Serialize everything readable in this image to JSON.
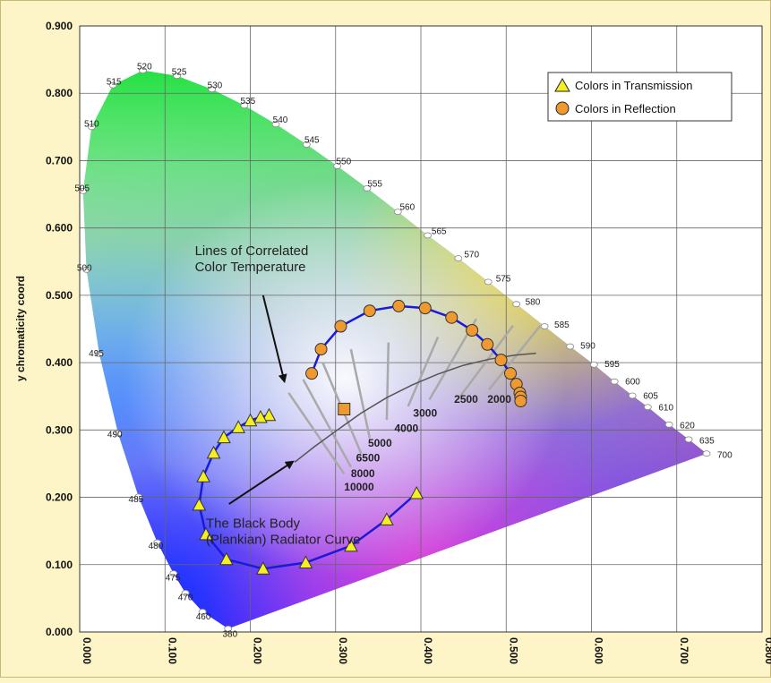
{
  "chart_data": {
    "type": "scatter",
    "title": "",
    "xlabel": "",
    "ylabel": "y chromaticity coord",
    "xlim": [
      0,
      0.8
    ],
    "ylim": [
      0,
      0.9
    ],
    "x_ticks": [
      "0.000",
      "0.100",
      "0.200",
      "0.300",
      "0.400",
      "0.500",
      "0.600",
      "0.700",
      "0.800"
    ],
    "y_ticks": [
      "0.000",
      "0.100",
      "0.200",
      "0.300",
      "0.400",
      "0.500",
      "0.600",
      "0.700",
      "0.800",
      "0.900"
    ],
    "grid": true,
    "legend_position": "top-right",
    "spectral_locus": [
      {
        "label": "380",
        "x": 0.174,
        "y": 0.005
      },
      {
        "label": "460",
        "x": 0.144,
        "y": 0.03
      },
      {
        "label": "470",
        "x": 0.124,
        "y": 0.058
      },
      {
        "label": "475",
        "x": 0.11,
        "y": 0.087
      },
      {
        "label": "480",
        "x": 0.091,
        "y": 0.133
      },
      {
        "label": "485",
        "x": 0.069,
        "y": 0.201
      },
      {
        "label": "490",
        "x": 0.045,
        "y": 0.295
      },
      {
        "label": "495",
        "x": 0.023,
        "y": 0.413
      },
      {
        "label": "500",
        "x": 0.008,
        "y": 0.538
      },
      {
        "label": "505",
        "x": 0.004,
        "y": 0.655
      },
      {
        "label": "510",
        "x": 0.014,
        "y": 0.75
      },
      {
        "label": "515",
        "x": 0.039,
        "y": 0.812
      },
      {
        "label": "520",
        "x": 0.074,
        "y": 0.834
      },
      {
        "label": "525",
        "x": 0.114,
        "y": 0.826
      },
      {
        "label": "530",
        "x": 0.155,
        "y": 0.806
      },
      {
        "label": "535",
        "x": 0.193,
        "y": 0.782
      },
      {
        "label": "540",
        "x": 0.23,
        "y": 0.754
      },
      {
        "label": "545",
        "x": 0.266,
        "y": 0.724
      },
      {
        "label": "550",
        "x": 0.302,
        "y": 0.692
      },
      {
        "label": "555",
        "x": 0.337,
        "y": 0.659
      },
      {
        "label": "560",
        "x": 0.373,
        "y": 0.624
      },
      {
        "label": "565",
        "x": 0.408,
        "y": 0.589
      },
      {
        "label": "570",
        "x": 0.444,
        "y": 0.555
      },
      {
        "label": "575",
        "x": 0.479,
        "y": 0.52
      },
      {
        "label": "580",
        "x": 0.512,
        "y": 0.487
      },
      {
        "label": "585",
        "x": 0.545,
        "y": 0.454
      },
      {
        "label": "590",
        "x": 0.575,
        "y": 0.424
      },
      {
        "label": "595",
        "x": 0.603,
        "y": 0.397
      },
      {
        "label": "600",
        "x": 0.627,
        "y": 0.372
      },
      {
        "label": "605",
        "x": 0.648,
        "y": 0.351
      },
      {
        "label": "610",
        "x": 0.666,
        "y": 0.334
      },
      {
        "label": "620",
        "x": 0.691,
        "y": 0.308
      },
      {
        "label": "635",
        "x": 0.714,
        "y": 0.286
      },
      {
        "label": "700",
        "x": 0.735,
        "y": 0.265
      }
    ],
    "series": [
      {
        "name": "Colors in Transmission",
        "marker": "triangle",
        "color": "#f4ee22",
        "points": [
          {
            "x": 0.222,
            "y": 0.322
          },
          {
            "x": 0.212,
            "y": 0.319
          },
          {
            "x": 0.2,
            "y": 0.314
          },
          {
            "x": 0.186,
            "y": 0.304
          },
          {
            "x": 0.169,
            "y": 0.289
          },
          {
            "x": 0.157,
            "y": 0.266
          },
          {
            "x": 0.145,
            "y": 0.231
          },
          {
            "x": 0.14,
            "y": 0.189
          },
          {
            "x": 0.148,
            "y": 0.145
          },
          {
            "x": 0.172,
            "y": 0.108
          },
          {
            "x": 0.215,
            "y": 0.094
          },
          {
            "x": 0.265,
            "y": 0.103
          },
          {
            "x": 0.318,
            "y": 0.128
          },
          {
            "x": 0.36,
            "y": 0.167
          },
          {
            "x": 0.395,
            "y": 0.206
          }
        ]
      },
      {
        "name": "Colors in Reflection",
        "marker": "circle",
        "color": "#ee9a30",
        "points": [
          {
            "x": 0.272,
            "y": 0.384
          },
          {
            "x": 0.283,
            "y": 0.42
          },
          {
            "x": 0.306,
            "y": 0.454
          },
          {
            "x": 0.34,
            "y": 0.477
          },
          {
            "x": 0.374,
            "y": 0.484
          },
          {
            "x": 0.405,
            "y": 0.481
          },
          {
            "x": 0.436,
            "y": 0.467
          },
          {
            "x": 0.46,
            "y": 0.448
          },
          {
            "x": 0.478,
            "y": 0.427
          },
          {
            "x": 0.494,
            "y": 0.404
          },
          {
            "x": 0.505,
            "y": 0.384
          },
          {
            "x": 0.512,
            "y": 0.368
          },
          {
            "x": 0.516,
            "y": 0.355
          },
          {
            "x": 0.517,
            "y": 0.349
          },
          {
            "x": 0.517,
            "y": 0.343
          }
        ]
      }
    ],
    "white_point": {
      "x": 0.31,
      "y": 0.331
    },
    "planckian_curve": [
      {
        "x": 0.252,
        "y": 0.252
      },
      {
        "x": 0.275,
        "y": 0.275
      },
      {
        "x": 0.3,
        "y": 0.298
      },
      {
        "x": 0.33,
        "y": 0.325
      },
      {
        "x": 0.36,
        "y": 0.348
      },
      {
        "x": 0.39,
        "y": 0.367
      },
      {
        "x": 0.42,
        "y": 0.383
      },
      {
        "x": 0.45,
        "y": 0.396
      },
      {
        "x": 0.48,
        "y": 0.405
      },
      {
        "x": 0.51,
        "y": 0.411
      },
      {
        "x": 0.535,
        "y": 0.414
      }
    ],
    "cct_lines": [
      {
        "label": "10000",
        "from": {
          "x": 0.245,
          "y": 0.355
        },
        "to": {
          "x": 0.31,
          "y": 0.235
        }
      },
      {
        "label": "8000",
        "from": {
          "x": 0.262,
          "y": 0.375
        },
        "to": {
          "x": 0.318,
          "y": 0.245
        }
      },
      {
        "label": "6500",
        "from": {
          "x": 0.285,
          "y": 0.4
        },
        "to": {
          "x": 0.33,
          "y": 0.265
        }
      },
      {
        "label": "5000",
        "from": {
          "x": 0.318,
          "y": 0.42
        },
        "to": {
          "x": 0.34,
          "y": 0.288
        }
      },
      {
        "label": "4000",
        "from": {
          "x": 0.362,
          "y": 0.43
        },
        "to": {
          "x": 0.36,
          "y": 0.315
        }
      },
      {
        "label": "3000",
        "from": {
          "x": 0.42,
          "y": 0.438
        },
        "to": {
          "x": 0.385,
          "y": 0.335
        }
      },
      {
        "label": "2500",
        "from": {
          "x": 0.465,
          "y": 0.465
        },
        "to": {
          "x": 0.41,
          "y": 0.345
        }
      },
      {
        "label": "2000",
        "from": {
          "x": 0.508,
          "y": 0.455
        },
        "to": {
          "x": 0.445,
          "y": 0.348
        }
      },
      {
        "label": "",
        "from": {
          "x": 0.54,
          "y": 0.455
        },
        "to": {
          "x": 0.48,
          "y": 0.36
        }
      }
    ],
    "cct_labels": [
      {
        "text": "10000",
        "x": 0.31,
        "y": 0.21
      },
      {
        "text": "8000",
        "x": 0.318,
        "y": 0.23
      },
      {
        "text": "6500",
        "x": 0.324,
        "y": 0.253
      },
      {
        "text": "5000",
        "x": 0.338,
        "y": 0.275
      },
      {
        "text": "4000",
        "x": 0.369,
        "y": 0.297
      },
      {
        "text": "3000",
        "x": 0.391,
        "y": 0.32
      },
      {
        "text": "2500",
        "x": 0.439,
        "y": 0.34
      },
      {
        "text": "2000",
        "x": 0.478,
        "y": 0.34
      }
    ],
    "annotations": [
      {
        "id": "cct-title",
        "lines": [
          "Lines of Correlated",
          "Color Temperature"
        ],
        "x": 0.135,
        "y": 0.56,
        "arrow_from": {
          "x": 0.215,
          "y": 0.5
        },
        "arrow_to": {
          "x": 0.24,
          "y": 0.372
        }
      },
      {
        "id": "planck-title",
        "lines": [
          "The Black Body",
          "(Plankian) Radiator Curve"
        ],
        "x": 0.148,
        "y": 0.155,
        "arrow_from": {
          "x": 0.175,
          "y": 0.19
        },
        "arrow_to": {
          "x": 0.25,
          "y": 0.253
        }
      }
    ],
    "colors": {
      "background": "#fdf5c8",
      "curve": "#1a1ad8",
      "grid": "#777777"
    }
  }
}
